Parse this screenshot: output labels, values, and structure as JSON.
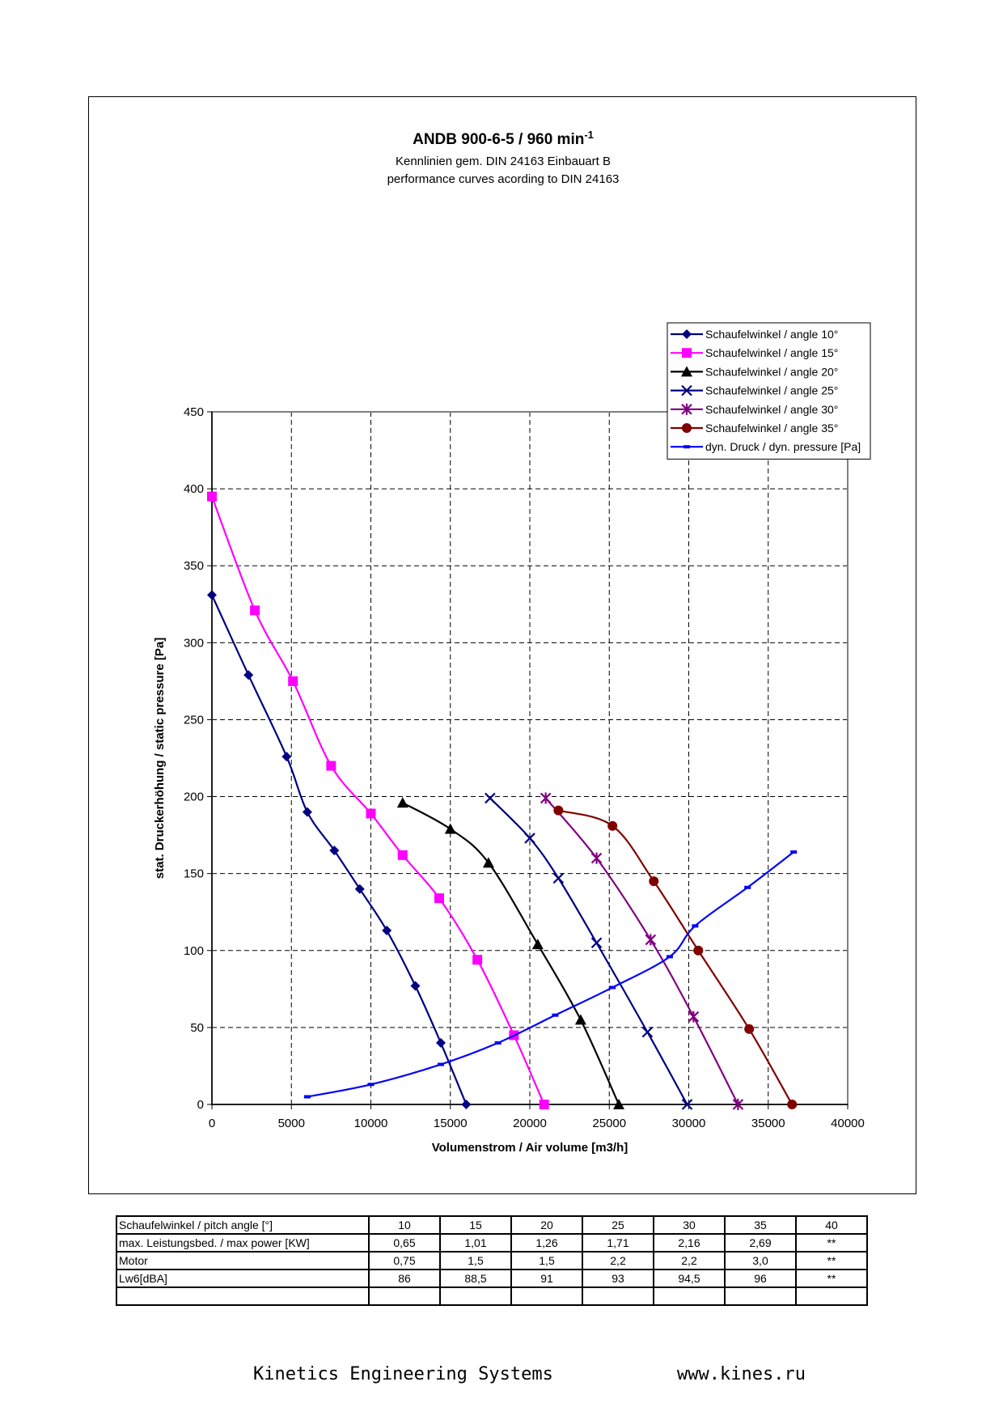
{
  "chart_data": {
    "type": "line",
    "title": "ANDB 900-6-5 / 960 min",
    "title_superscript": "-1",
    "subtitle_lines": [
      "Kennlinien gem. DIN 24163 Einbauart B",
      "performance curves acording to DIN 24163"
    ],
    "xlabel": "Volumenstrom / Air volume [m3/h]",
    "ylabel": "stat. Druckerhöhung / static pressure [Pa]",
    "xlim": [
      0,
      40000
    ],
    "ylim": [
      0,
      450
    ],
    "x_ticks": [
      0,
      5000,
      10000,
      15000,
      20000,
      25000,
      30000,
      35000,
      40000
    ],
    "y_ticks": [
      0,
      50,
      100,
      150,
      200,
      250,
      300,
      350,
      400,
      450
    ],
    "grid": true,
    "legend_position": "top-right",
    "series": [
      {
        "name": "Schaufelwinkel / angle 10°",
        "color": "#000080",
        "marker": "diamond",
        "points": [
          [
            0,
            331
          ],
          [
            2300,
            279
          ],
          [
            4700,
            226
          ],
          [
            6000,
            190
          ],
          [
            7700,
            165
          ],
          [
            9300,
            140
          ],
          [
            11000,
            113
          ],
          [
            12800,
            77
          ],
          [
            14400,
            40
          ],
          [
            16000,
            0
          ]
        ]
      },
      {
        "name": "Schaufelwinkel / angle 15°",
        "color": "#FF00FF",
        "marker": "square",
        "points": [
          [
            0,
            395
          ],
          [
            2700,
            321
          ],
          [
            5100,
            275
          ],
          [
            7500,
            220
          ],
          [
            10000,
            189
          ],
          [
            12000,
            162
          ],
          [
            14300,
            134
          ],
          [
            16700,
            94
          ],
          [
            19000,
            45
          ],
          [
            20900,
            0
          ]
        ]
      },
      {
        "name": "Schaufelwinkel / angle 20°",
        "color": "#000000",
        "marker": "triangle",
        "points": [
          [
            12000,
            196
          ],
          [
            15000,
            179
          ],
          [
            17400,
            157
          ],
          [
            20500,
            104
          ],
          [
            23200,
            55
          ],
          [
            25600,
            0
          ]
        ]
      },
      {
        "name": "Schaufelwinkel / angle 25°",
        "color": "#000080",
        "marker": "x",
        "points": [
          [
            17500,
            199
          ],
          [
            20000,
            173
          ],
          [
            21800,
            147
          ],
          [
            24200,
            105
          ],
          [
            27400,
            47
          ],
          [
            29900,
            0
          ]
        ]
      },
      {
        "name": "Schaufelwinkel / angle 30°",
        "color": "#800080",
        "marker": "star",
        "points": [
          [
            21000,
            199
          ],
          [
            24200,
            160
          ],
          [
            27600,
            107
          ],
          [
            30300,
            57
          ],
          [
            33100,
            0
          ]
        ]
      },
      {
        "name": "Schaufelwinkel / angle 35°",
        "color": "#800000",
        "marker": "circle",
        "points": [
          [
            21800,
            191
          ],
          [
            25200,
            181
          ],
          [
            27800,
            145
          ],
          [
            30600,
            100
          ],
          [
            33800,
            49
          ],
          [
            36500,
            0
          ]
        ]
      },
      {
        "name": "dyn. Druck / dyn. pressure [Pa]",
        "color": "#0000FF",
        "marker": "dash",
        "points": [
          [
            6000,
            5
          ],
          [
            10000,
            13
          ],
          [
            14400,
            26
          ],
          [
            18000,
            40
          ],
          [
            21600,
            58
          ],
          [
            25200,
            76
          ],
          [
            28800,
            96
          ],
          [
            30400,
            116
          ],
          [
            33700,
            141
          ],
          [
            36600,
            164
          ]
        ]
      }
    ]
  },
  "table": {
    "rows": [
      [
        "Schaufelwinkel / pitch angle [°]",
        "10",
        "15",
        "20",
        "25",
        "30",
        "35",
        "40"
      ],
      [
        "max. Leistungsbed. / max power [KW]",
        "0,65",
        "1,01",
        "1,26",
        "1,71",
        "2,16",
        "2,69",
        "**"
      ],
      [
        "Motor",
        "0,75",
        "1,5",
        "1,5",
        "2,2",
        "2,2",
        "3,0",
        "**"
      ],
      [
        "Lw6[dBA]",
        "86",
        "88,5",
        "91",
        "93",
        "94,5",
        "96",
        "**"
      ],
      [
        "",
        "",
        "",
        "",
        "",
        "",
        "",
        ""
      ]
    ]
  },
  "footer": {
    "company": "Kinetics Engineering Systems",
    "url": "www.kines.ru"
  }
}
